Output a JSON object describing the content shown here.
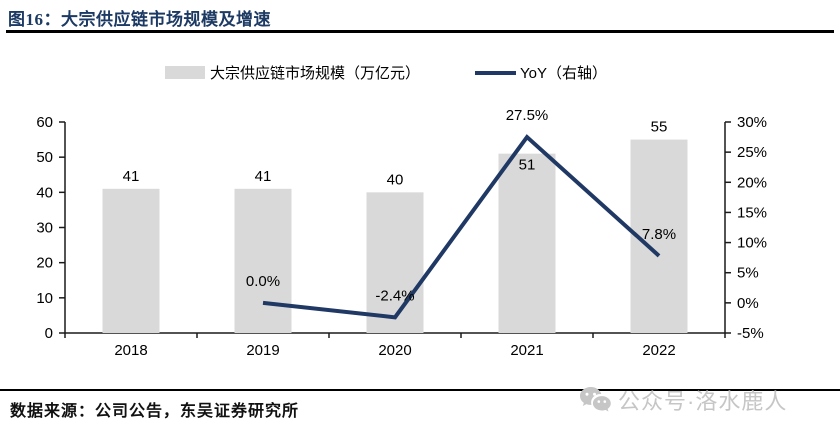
{
  "figure": {
    "title": "图16：大宗供应链市场规模及增速",
    "source": "数据来源：公司公告，东吴证券研究所",
    "watermark": "公众号·洛水鹿人",
    "accent_color": "#1f3864",
    "watermark_color": "#c6c6c6"
  },
  "chart_data": {
    "type": "bar",
    "subtype": "bar+line combo",
    "categories": [
      "2018",
      "2019",
      "2020",
      "2021",
      "2022"
    ],
    "series": [
      {
        "name": "大宗供应链市场规模（万亿元）",
        "type": "bar",
        "axis": "left",
        "color": "#d9d9d9",
        "values": [
          41,
          41,
          40,
          51,
          55
        ],
        "labels": [
          "41",
          "41",
          "40",
          "51",
          "55"
        ],
        "label_positions": [
          "above",
          "above",
          "above",
          "inside",
          "above"
        ]
      },
      {
        "name": "YoY（右轴）",
        "type": "line",
        "axis": "right",
        "color": "#1f3864",
        "values": [
          null,
          0.0,
          -2.4,
          27.5,
          7.8
        ],
        "labels": [
          "",
          "0.0%",
          "-2.4%",
          "27.5%",
          "7.8%"
        ]
      }
    ],
    "left_axis": {
      "min": 0,
      "max": 60,
      "step": 10,
      "ticks": [
        "0",
        "10",
        "20",
        "30",
        "40",
        "50",
        "60"
      ]
    },
    "right_axis": {
      "min": -5,
      "max": 30,
      "step": 5,
      "ticks": [
        "-5%",
        "0%",
        "5%",
        "10%",
        "15%",
        "20%",
        "25%",
        "30%"
      ]
    },
    "grid": false,
    "legend_position": "top"
  }
}
